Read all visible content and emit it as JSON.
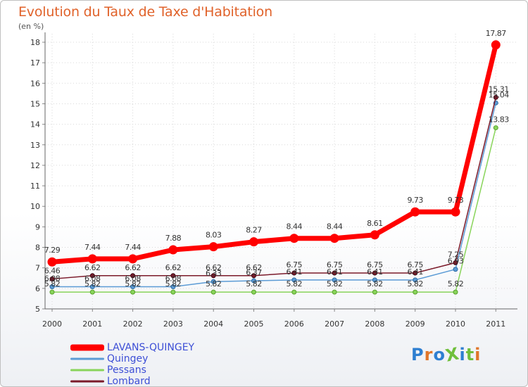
{
  "title": "Evolution du Taux de Taxe d'Habitation",
  "subtitle": "(en %)",
  "logo": {
    "text": "ProXiti",
    "colors": [
      "#2e7fd1",
      "#e0762a",
      "#2e7fd1",
      "#6fbf3b",
      "#2e7fd1",
      "#6fbf3b",
      "#e0762a"
    ]
  },
  "chart_data": {
    "type": "line",
    "title": "Evolution du Taux de Taxe d'Habitation",
    "subtitle": "(en %)",
    "xlabel": "",
    "ylabel": "",
    "ylim": [
      5,
      18
    ],
    "yticks": [
      "5",
      "6",
      "7",
      "8",
      "9",
      "10",
      "11",
      "12",
      "13",
      "14",
      "15",
      "16",
      "17",
      "18"
    ],
    "grid": true,
    "legend_position": "bottom-left",
    "categories": [
      "2000",
      "2001",
      "2002",
      "2003",
      "2004",
      "2005",
      "2006",
      "2007",
      "2008",
      "2009",
      "2010",
      "2011"
    ],
    "series": [
      {
        "name": "Pessans",
        "color": "#88d45a",
        "values": [
          5.82,
          5.82,
          5.82,
          5.82,
          5.82,
          5.82,
          5.82,
          5.82,
          5.82,
          5.82,
          5.82,
          13.83
        ],
        "labels": [
          "5.82",
          "5.82",
          "5.82",
          "5.82",
          "5.82",
          "5.82",
          "5.82",
          "5.82",
          "5.82",
          "5.82",
          "5.82",
          "13.83"
        ]
      },
      {
        "name": "Quingey",
        "color": "#5b9bd5",
        "values": [
          6.08,
          6.08,
          6.08,
          6.08,
          6.33,
          6.37,
          6.41,
          6.41,
          6.41,
          6.41,
          6.93,
          15.04
        ],
        "labels": [
          "6.08",
          "6.08",
          "6.08",
          "6.08",
          "6.33",
          "6.37",
          "6.41",
          "6.41",
          "6.41",
          "6.41",
          "6.93",
          "15.04"
        ]
      },
      {
        "name": "Lombard",
        "color": "#7b1a2a",
        "values": [
          6.46,
          6.62,
          6.62,
          6.62,
          6.62,
          6.62,
          6.75,
          6.75,
          6.75,
          6.75,
          7.25,
          15.31
        ],
        "labels": [
          "6.46",
          "6.62",
          "6.62",
          "6.62",
          "6.62",
          "6.62",
          "6.75",
          "6.75",
          "6.75",
          "6.75",
          "7.25",
          "15.31"
        ]
      },
      {
        "name": "LAVANS-QUINGEY",
        "color": "#ff0000",
        "values": [
          7.29,
          7.44,
          7.44,
          7.88,
          8.03,
          8.27,
          8.44,
          8.44,
          8.61,
          9.73,
          9.73,
          17.87
        ],
        "labels": [
          "7.29",
          "7.44",
          "7.44",
          "7.88",
          "8.03",
          "8.27",
          "8.44",
          "8.44",
          "8.61",
          "9.73",
          "9.73",
          "17.87"
        ]
      }
    ],
    "legend": [
      "LAVANS-QUINGEY",
      "Quingey",
      "Pessans",
      "Lombard"
    ]
  }
}
